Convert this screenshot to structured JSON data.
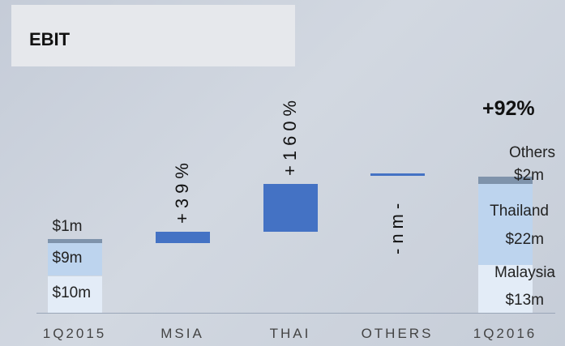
{
  "title": "EBIT",
  "growth_label": "+92%",
  "chart_data": {
    "type": "bar",
    "subtype": "waterfall",
    "categories": [
      "1Q2015",
      "MSIA",
      "THAI",
      "OTHERS",
      "1Q2016"
    ],
    "start": {
      "category": "1Q2015",
      "total": 20,
      "segments": [
        {
          "label": "$10m",
          "value": 10,
          "color": "#e3ecf7"
        },
        {
          "label": "$9m",
          "value": 9,
          "color": "#bdd4ee"
        },
        {
          "label": "$1m",
          "value": 1,
          "color": "#7f93ab"
        }
      ]
    },
    "changes": [
      {
        "category": "MSIA",
        "from": 19,
        "to": 22,
        "label": "+39%",
        "color": "#4472c4"
      },
      {
        "category": "THAI",
        "from": 22,
        "to": 35,
        "label": "+160%",
        "color": "#4472c4"
      },
      {
        "category": "OTHERS",
        "from": 37.6,
        "to": 37.9,
        "label": "-nm-",
        "color": "#4472c4"
      }
    ],
    "end": {
      "category": "1Q2016",
      "total": 37,
      "segments": [
        {
          "name": "Malaysia",
          "label": "$13m",
          "value": 13,
          "color": "#e3ecf7"
        },
        {
          "name": "Thailand",
          "label": "$22m",
          "value": 22,
          "color": "#bdd4ee"
        },
        {
          "name": "Others",
          "label": "$2m",
          "value": 2,
          "color": "#7f93ab"
        }
      ]
    },
    "ylim": [
      0,
      68
    ],
    "grid": false,
    "legend": "none"
  }
}
